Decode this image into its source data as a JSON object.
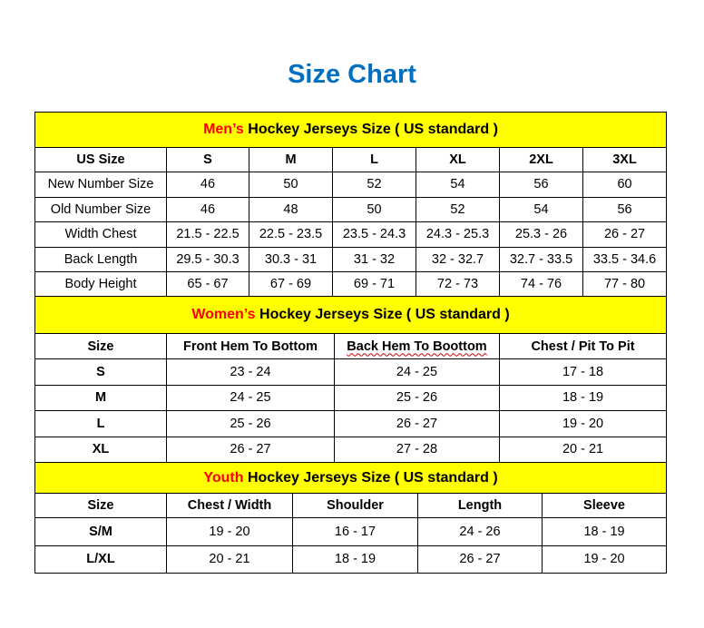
{
  "title": "Size Chart",
  "sections": [
    {
      "id": "mens",
      "caption_highlight": "Men’s",
      "caption_rest": " Hockey Jerseys Size ( US standard )",
      "headers": [
        "US Size",
        "S",
        "M",
        "L",
        "XL",
        "2XL",
        "3XL"
      ],
      "rows": [
        [
          "New Number Size",
          "46",
          "50",
          "52",
          "54",
          "56",
          "60"
        ],
        [
          "Old Number Size",
          "46",
          "48",
          "50",
          "52",
          "54",
          "56"
        ],
        [
          "Width Chest",
          "21.5 - 22.5",
          "22.5 - 23.5",
          "23.5 - 24.3",
          "24.3 - 25.3",
          "25.3 - 26",
          "26 - 27"
        ],
        [
          "Back Length",
          "29.5 - 30.3",
          "30.3 - 31",
          "31 - 32",
          "32 - 32.7",
          "32.7 - 33.5",
          "33.5 - 34.6"
        ],
        [
          "Body Height",
          "65 - 67",
          "67 - 69",
          "69 - 71",
          "72 - 73",
          "74 - 76",
          "77 - 80"
        ]
      ]
    },
    {
      "id": "womens",
      "caption_highlight": "Women’s",
      "caption_rest": " Hockey Jerseys Size ( US standard )",
      "headers": [
        "Size",
        "Front Hem To Bottom",
        "Back Hem To Boottom",
        "Chest / Pit To Pit"
      ],
      "rows": [
        [
          "S",
          "23 - 24",
          "24 - 25",
          "17 - 18"
        ],
        [
          "M",
          "24 - 25",
          "25 - 26",
          "18 - 19"
        ],
        [
          "L",
          "25 - 26",
          "26 - 27",
          "19 - 20"
        ],
        [
          "XL",
          "26 - 27",
          "27 - 28",
          "20 - 21"
        ]
      ]
    },
    {
      "id": "youth",
      "caption_highlight": "Youth",
      "caption_rest": " Hockey Jerseys Size ( US standard )",
      "headers": [
        "Size",
        "Chest / Width",
        "Shoulder",
        "Length",
        "Sleeve"
      ],
      "rows": [
        [
          "S/M",
          "19 - 20",
          "16 - 17",
          "24 - 26",
          "18 - 19"
        ],
        [
          "L/XL",
          "20 - 21",
          "18 - 19",
          "26 - 27",
          "19 - 20"
        ]
      ]
    }
  ]
}
